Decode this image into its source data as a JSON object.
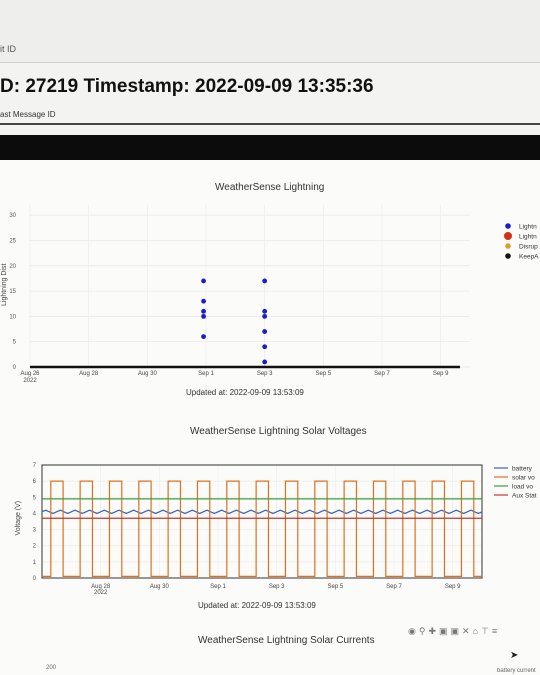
{
  "header": {
    "link_text": "it ID"
  },
  "page": {
    "heading": "D: 27219 Timestamp: 2022-09-09 13:35:36",
    "subtext": "ast Message ID"
  },
  "colors": {
    "lightning_dot": "#1c1ccf",
    "battery": "#3a62b5",
    "solar": "#e07020",
    "load": "#3f9c3f",
    "aux": "#c0392b",
    "keepalive": "#111111"
  },
  "charts": {
    "lightning": {
      "title": "WeatherSense Lightning",
      "updated": "Updated at: 2022-09-09 13:53:09"
    },
    "voltages": {
      "title": "WeatherSense Lightning Solar Voltages",
      "updated": "Updated at: 2022-09-09 13:53:09"
    },
    "currents": {
      "title": "WeatherSense Lightning Solar Currents",
      "ytick": "200",
      "legend_partial": "battery current"
    }
  },
  "toolbar": {
    "icons": [
      "camera-icon",
      "zoom-icon",
      "pan-icon",
      "zoom-in-icon",
      "zoom-out-icon",
      "autoscale-icon",
      "reset-icon",
      "spike-icon",
      "compare-icon"
    ]
  },
  "chart_data": [
    {
      "type": "scatter",
      "title": "WeatherSense Lightning",
      "ylabel": "Lightning Dist",
      "xlim": [
        "2022-08-26",
        "2022-09-10"
      ],
      "ylim": [
        0,
        32
      ],
      "x_ticks": [
        {
          "date": "2022-08-26",
          "label": "Aug 26",
          "sub": "2022"
        },
        {
          "date": "2022-08-28",
          "label": "Aug 28"
        },
        {
          "date": "2022-08-30",
          "label": "Aug 30"
        },
        {
          "date": "2022-09-01",
          "label": "Sep 1"
        },
        {
          "date": "2022-09-03",
          "label": "Sep 3"
        },
        {
          "date": "2022-09-05",
          "label": "Sep 5"
        },
        {
          "date": "2022-09-07",
          "label": "Sep 7"
        },
        {
          "date": "2022-09-09",
          "label": "Sep 9"
        }
      ],
      "y_ticks": [
        0,
        5,
        10,
        15,
        20,
        25,
        30
      ],
      "legend": [
        "Lightn",
        "Lightn",
        "Disrup",
        "KeepA"
      ],
      "series": [
        {
          "name": "Lightn",
          "color": "#1c1ccf",
          "points": [
            {
              "x": "2022-08-31T22:00",
              "y": 17
            },
            {
              "x": "2022-08-31T22:00",
              "y": 13
            },
            {
              "x": "2022-08-31T22:00",
              "y": 11
            },
            {
              "x": "2022-08-31T22:00",
              "y": 10
            },
            {
              "x": "2022-08-31T22:00",
              "y": 6
            },
            {
              "x": "2022-09-03T00:00",
              "y": 17
            },
            {
              "x": "2022-09-03T00:00",
              "y": 11
            },
            {
              "x": "2022-09-03T00:00",
              "y": 10
            },
            {
              "x": "2022-09-03T00:00",
              "y": 7
            },
            {
              "x": "2022-09-03T00:00",
              "y": 4
            },
            {
              "x": "2022-09-03T00:00",
              "y": 1
            }
          ]
        }
      ]
    },
    {
      "type": "line",
      "title": "WeatherSense Lightning Solar Voltages",
      "ylabel": "Voltage (V)",
      "xlim": [
        "2022-08-26",
        "2022-09-10"
      ],
      "ylim": [
        0,
        7
      ],
      "x_ticks": [
        {
          "date": "2022-08-28",
          "label": "Aug 28",
          "sub": "2022"
        },
        {
          "date": "2022-08-30",
          "label": "Aug 30"
        },
        {
          "date": "2022-09-01",
          "label": "Sep 1"
        },
        {
          "date": "2022-09-03",
          "label": "Sep 3"
        },
        {
          "date": "2022-09-05",
          "label": "Sep 5"
        },
        {
          "date": "2022-09-07",
          "label": "Sep 7"
        },
        {
          "date": "2022-09-09",
          "label": "Sep 9"
        }
      ],
      "y_ticks": [
        0,
        1,
        2,
        3,
        4,
        5,
        6,
        7
      ],
      "legend": [
        "battery",
        "solar vo",
        "load vo",
        "Aux Stat"
      ],
      "series": [
        {
          "name": "battery",
          "color": "#3a62b5",
          "kind": "wavy",
          "base": 4.1,
          "amp": 0.1
        },
        {
          "name": "solar vo",
          "color": "#e07020",
          "kind": "daily-square",
          "high": 6.0,
          "low": 0.1
        },
        {
          "name": "load vo",
          "color": "#3f9c3f",
          "kind": "flat",
          "value": 4.9
        },
        {
          "name": "Aux Stat",
          "color": "#c0392b",
          "kind": "flat",
          "value": 3.7
        }
      ]
    }
  ]
}
